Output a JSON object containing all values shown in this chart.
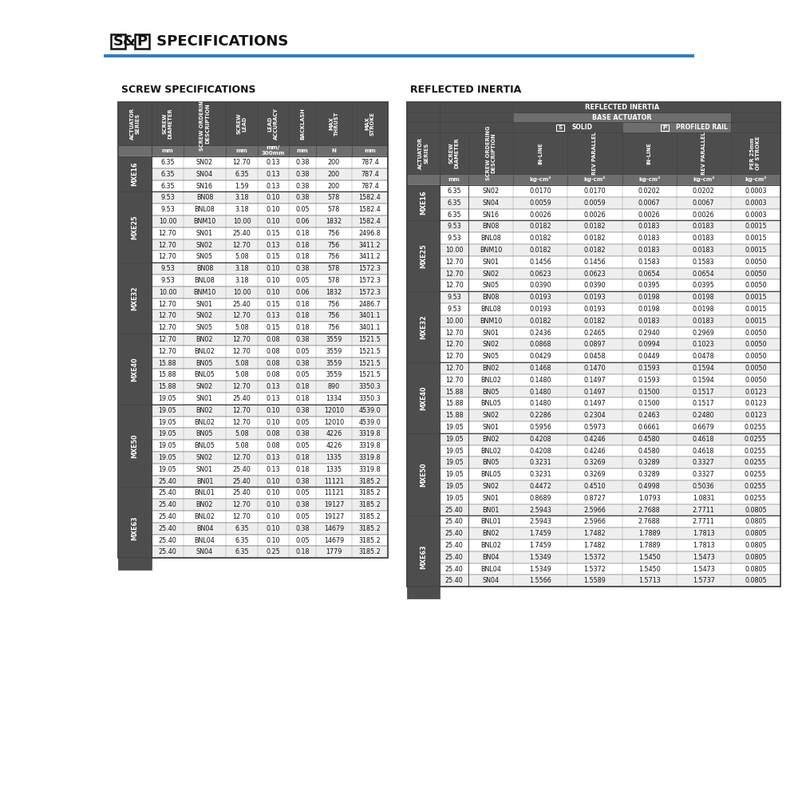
{
  "screw_data": [
    [
      "MXE16",
      "6.35",
      "SN02",
      "12.70",
      "0.13",
      "0.38",
      "200",
      "787.4"
    ],
    [
      "MXE16",
      "6.35",
      "SN04",
      "6.35",
      "0.13",
      "0.38",
      "200",
      "787.4"
    ],
    [
      "MXE16",
      "6.35",
      "SN16",
      "1.59",
      "0.13",
      "0.38",
      "200",
      "787.4"
    ],
    [
      "MXE25",
      "9.53",
      "BN08",
      "3.18",
      "0.10",
      "0.38",
      "578",
      "1582.4"
    ],
    [
      "MXE25",
      "9.53",
      "BNL08",
      "3.18",
      "0.10",
      "0.05",
      "578",
      "1582.4"
    ],
    [
      "MXE25",
      "10.00",
      "BNM10",
      "10.00",
      "0.10",
      "0.06",
      "1832",
      "1582.4"
    ],
    [
      "MXE25",
      "12.70",
      "SN01",
      "25.40",
      "0.15",
      "0.18",
      "756",
      "2496.8"
    ],
    [
      "MXE25",
      "12.70",
      "SN02",
      "12.70",
      "0.13",
      "0.18",
      "756",
      "3411.2"
    ],
    [
      "MXE25",
      "12.70",
      "SN05",
      "5.08",
      "0.15",
      "0.18",
      "756",
      "3411.2"
    ],
    [
      "MXE32",
      "9.53",
      "BN08",
      "3.18",
      "0.10",
      "0.38",
      "578",
      "1572.3"
    ],
    [
      "MXE32",
      "9.53",
      "BNL08",
      "3.18",
      "0.10",
      "0.05",
      "578",
      "1572.3"
    ],
    [
      "MXE32",
      "10.00",
      "BNM10",
      "10.00",
      "0.10",
      "0.06",
      "1832",
      "1572.3"
    ],
    [
      "MXE32",
      "12.70",
      "SN01",
      "25.40",
      "0.15",
      "0.18",
      "756",
      "2486.7"
    ],
    [
      "MXE32",
      "12.70",
      "SN02",
      "12.70",
      "0.13",
      "0.18",
      "756",
      "3401.1"
    ],
    [
      "MXE32",
      "12.70",
      "SN05",
      "5.08",
      "0.15",
      "0.18",
      "756",
      "3401.1"
    ],
    [
      "MXE40",
      "12.70",
      "BN02",
      "12.70",
      "0.08",
      "0.38",
      "3559",
      "1521.5"
    ],
    [
      "MXE40",
      "12.70",
      "BNL02",
      "12.70",
      "0.08",
      "0.05",
      "3559",
      "1521.5"
    ],
    [
      "MXE40",
      "15.88",
      "BN05",
      "5.08",
      "0.08",
      "0.38",
      "3559",
      "1521.5"
    ],
    [
      "MXE40",
      "15.88",
      "BNL05",
      "5.08",
      "0.08",
      "0.05",
      "3559",
      "1521.5"
    ],
    [
      "MXE40",
      "15.88",
      "SN02",
      "12.70",
      "0.13",
      "0.18",
      "890",
      "3350.3"
    ],
    [
      "MXE40",
      "19.05",
      "SN01",
      "25.40",
      "0.13",
      "0.18",
      "1334",
      "3350.3"
    ],
    [
      "MXE50",
      "19.05",
      "BN02",
      "12.70",
      "0.10",
      "0.38",
      "12010",
      "4539.0"
    ],
    [
      "MXE50",
      "19.05",
      "BNL02",
      "12.70",
      "0.10",
      "0.05",
      "12010",
      "4539.0"
    ],
    [
      "MXE50",
      "19.05",
      "BN05",
      "5.08",
      "0.08",
      "0.38",
      "4226",
      "3319.8"
    ],
    [
      "MXE50",
      "19.05",
      "BNL05",
      "5.08",
      "0.08",
      "0.05",
      "4226",
      "3319.8"
    ],
    [
      "MXE50",
      "19.05",
      "SN02",
      "12.70",
      "0.13",
      "0.18",
      "1335",
      "3319.8"
    ],
    [
      "MXE50",
      "19.05",
      "SN01",
      "25.40",
      "0.13",
      "0.18",
      "1335",
      "3319.8"
    ],
    [
      "MXE63",
      "25.40",
      "BN01",
      "25.40",
      "0.10",
      "0.38",
      "11121",
      "3185.2"
    ],
    [
      "MXE63",
      "25.40",
      "BNL01",
      "25.40",
      "0.10",
      "0.05",
      "11121",
      "3185.2"
    ],
    [
      "MXE63",
      "25.40",
      "BN02",
      "12.70",
      "0.10",
      "0.38",
      "19127",
      "3185.2"
    ],
    [
      "MXE63",
      "25.40",
      "BNL02",
      "12.70",
      "0.10",
      "0.05",
      "19127",
      "3185.2"
    ],
    [
      "MXE63",
      "25.40",
      "BN04",
      "6.35",
      "0.10",
      "0.38",
      "14679",
      "3185.2"
    ],
    [
      "MXE63",
      "25.40",
      "BNL04",
      "6.35",
      "0.10",
      "0.05",
      "14679",
      "3185.2"
    ],
    [
      "MXE63",
      "25.40",
      "SN04",
      "6.35",
      "0.25",
      "0.18",
      "1779",
      "3185.2"
    ]
  ],
  "inertia_data": [
    [
      "MXE16",
      "6.35",
      "SN02",
      "0.0170",
      "0.0170",
      "0.0202",
      "0.0202",
      "0.0003"
    ],
    [
      "MXE16",
      "6.35",
      "SN04",
      "0.0059",
      "0.0059",
      "0.0067",
      "0.0067",
      "0.0003"
    ],
    [
      "MXE16",
      "6.35",
      "SN16",
      "0.0026",
      "0.0026",
      "0.0026",
      "0.0026",
      "0.0003"
    ],
    [
      "MXE25",
      "9.53",
      "BN08",
      "0.0182",
      "0.0182",
      "0.0183",
      "0.0183",
      "0.0015"
    ],
    [
      "MXE25",
      "9.53",
      "BNL08",
      "0.0182",
      "0.0182",
      "0.0183",
      "0.0183",
      "0.0015"
    ],
    [
      "MXE25",
      "10.00",
      "BNM10",
      "0.0182",
      "0.0182",
      "0.0183",
      "0.0183",
      "0.0015"
    ],
    [
      "MXE25",
      "12.70",
      "SN01",
      "0.1456",
      "0.1456",
      "0.1583",
      "0.1583",
      "0.0050"
    ],
    [
      "MXE25",
      "12.70",
      "SN02",
      "0.0623",
      "0.0623",
      "0.0654",
      "0.0654",
      "0.0050"
    ],
    [
      "MXE25",
      "12.70",
      "SN05",
      "0.0390",
      "0.0390",
      "0.0395",
      "0.0395",
      "0.0050"
    ],
    [
      "MXE32",
      "9.53",
      "BN08",
      "0.0193",
      "0.0193",
      "0.0198",
      "0.0198",
      "0.0015"
    ],
    [
      "MXE32",
      "9.53",
      "BNL08",
      "0.0193",
      "0.0193",
      "0.0198",
      "0.0198",
      "0.0015"
    ],
    [
      "MXE32",
      "10.00",
      "BNM10",
      "0.0182",
      "0.0182",
      "0.0183",
      "0.0183",
      "0.0015"
    ],
    [
      "MXE32",
      "12.70",
      "SN01",
      "0.2436",
      "0.2465",
      "0.2940",
      "0.2969",
      "0.0050"
    ],
    [
      "MXE32",
      "12.70",
      "SN02",
      "0.0868",
      "0.0897",
      "0.0994",
      "0.1023",
      "0.0050"
    ],
    [
      "MXE32",
      "12.70",
      "SN05",
      "0.0429",
      "0.0458",
      "0.0449",
      "0.0478",
      "0.0050"
    ],
    [
      "MXE40",
      "12.70",
      "BN02",
      "0.1468",
      "0.1470",
      "0.1593",
      "0.1594",
      "0.0050"
    ],
    [
      "MXE40",
      "12.70",
      "BNL02",
      "0.1480",
      "0.1497",
      "0.1593",
      "0.1594",
      "0.0050"
    ],
    [
      "MXE40",
      "15.88",
      "BN05",
      "0.1480",
      "0.1497",
      "0.1500",
      "0.1517",
      "0.0123"
    ],
    [
      "MXE40",
      "15.88",
      "BNL05",
      "0.1480",
      "0.1497",
      "0.1500",
      "0.1517",
      "0.0123"
    ],
    [
      "MXE40",
      "15.88",
      "SN02",
      "0.2286",
      "0.2304",
      "0.2463",
      "0.2480",
      "0.0123"
    ],
    [
      "MXE40",
      "19.05",
      "SN01",
      "0.5956",
      "0.5973",
      "0.6661",
      "0.6679",
      "0.0255"
    ],
    [
      "MXE50",
      "19.05",
      "BN02",
      "0.4208",
      "0.4246",
      "0.4580",
      "0.4618",
      "0.0255"
    ],
    [
      "MXE50",
      "19.05",
      "BNL02",
      "0.4208",
      "0.4246",
      "0.4580",
      "0.4618",
      "0.0255"
    ],
    [
      "MXE50",
      "19.05",
      "BN05",
      "0.3231",
      "0.3269",
      "0.3289",
      "0.3327",
      "0.0255"
    ],
    [
      "MXE50",
      "19.05",
      "BNL05",
      "0.3231",
      "0.3269",
      "0.3289",
      "0.3327",
      "0.0255"
    ],
    [
      "MXE50",
      "19.05",
      "SN02",
      "0.4472",
      "0.4510",
      "0.4998",
      "0.5036",
      "0.0255"
    ],
    [
      "MXE50",
      "19.05",
      "SN01",
      "0.8689",
      "0.8727",
      "1.0793",
      "1.0831",
      "0.0255"
    ],
    [
      "MXE63",
      "25.40",
      "BN01",
      "2.5943",
      "2.5966",
      "2.7688",
      "2.7711",
      "0.0805"
    ],
    [
      "MXE63",
      "25.40",
      "BNL01",
      "2.5943",
      "2.5966",
      "2.7688",
      "2.7711",
      "0.0805"
    ],
    [
      "MXE63",
      "25.40",
      "BN02",
      "1.7459",
      "1.7482",
      "1.7889",
      "1.7813",
      "0.0805"
    ],
    [
      "MXE63",
      "25.40",
      "BNL02",
      "1.7459",
      "1.7482",
      "1.7889",
      "1.7813",
      "0.0805"
    ],
    [
      "MXE63",
      "25.40",
      "BN04",
      "1.5349",
      "1.5372",
      "1.5450",
      "1.5473",
      "0.0805"
    ],
    [
      "MXE63",
      "25.40",
      "BNL04",
      "1.5349",
      "1.5372",
      "1.5450",
      "1.5473",
      "0.0805"
    ],
    [
      "MXE63",
      "25.40",
      "SN04",
      "1.5566",
      "1.5589",
      "1.5713",
      "1.5737",
      "0.0805"
    ]
  ],
  "series_order": [
    "MXE16",
    "MXE25",
    "MXE32",
    "MXE40",
    "MXE50",
    "MXE63"
  ],
  "series_counts": {
    "MXE16": 3,
    "MXE25": 6,
    "MXE32": 6,
    "MXE40": 6,
    "MXE50": 7,
    "MXE63": 7
  },
  "screw_col_headers": [
    "ACTUATOR\nSERIES",
    "SCREW\nDIAMETER",
    "SCREW ORDERING\nDESCRIPTION",
    "SCREW\nLEAD",
    "LEAD\nACCURACY",
    "BACKLASH",
    "MAX\nTHRUST",
    "MAX\nSTROKE"
  ],
  "screw_units": [
    "",
    "mm",
    "",
    "mm",
    "mm/\n300mm",
    "mm",
    "N",
    "mm"
  ],
  "inertia_col_headers": [
    "ACTUATOR\nSERIES",
    "SCREW\nDIAMETER",
    "SCREW ORDERING\nDESCRIPTION",
    "IN-LINE",
    "REV PARALLEL",
    "IN-LINE",
    "REV PARALLEL",
    "PER 25mm\nOF STROKE"
  ],
  "inertia_units": [
    "",
    "mm",
    "",
    "kg-cm²",
    "kg-cm²",
    "kg-cm²",
    "kg-cm²",
    "kg-cm²"
  ],
  "HDR_DARK": "#4d4d4d",
  "HDR_MED": "#6e6e6e",
  "WHITE": "#ffffff",
  "LIGHT_ROW": "#eeeeee",
  "BLUE_LINE": "#2b7fc3",
  "TEXT_DARK": "#111111",
  "BORDER": "#999999",
  "DARK_BDR": "#444444"
}
